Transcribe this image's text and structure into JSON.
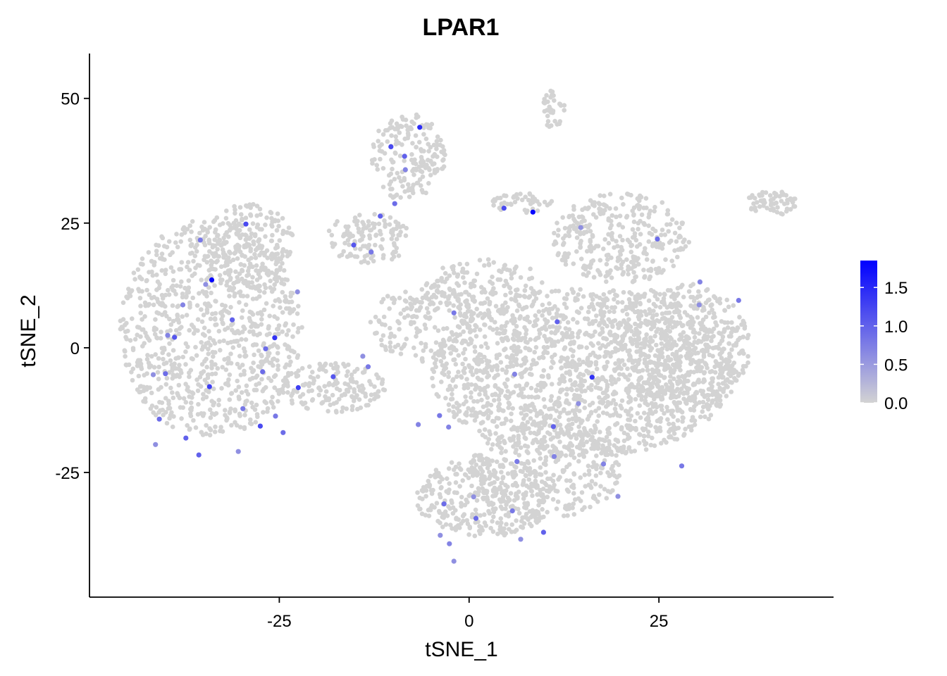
{
  "chart_data": {
    "type": "scatter",
    "title": "LPAR1",
    "xlabel": "tSNE_1",
    "ylabel": "tSNE_2",
    "xlim": [
      -50,
      48
    ],
    "ylim": [
      -50,
      59
    ],
    "x_ticks": [
      -25,
      0,
      25
    ],
    "y_ticks": [
      -25,
      0,
      25,
      50
    ],
    "x_tick_labels": [
      "-25",
      "0",
      "25"
    ],
    "y_tick_labels": [
      "-25",
      "0",
      "25",
      "50"
    ],
    "grid": false,
    "legend_placement": "right",
    "color_scale": {
      "low": "#d3d3d3",
      "high": "#0000ff",
      "min": 0,
      "max": 1.85,
      "breaks": [
        0.0,
        0.5,
        1.0,
        1.5
      ],
      "break_labels": [
        "0.0",
        "0.5",
        "1.0",
        "1.5"
      ]
    },
    "clusters": [
      {
        "cx": -34,
        "cy": 4,
        "rx": 12,
        "ry": 22,
        "n": 900
      },
      {
        "cx": -29,
        "cy": 20,
        "rx": 6,
        "ry": 9,
        "n": 200
      },
      {
        "cx": -18,
        "cy": -8,
        "rx": 7,
        "ry": 5,
        "n": 160
      },
      {
        "cx": -8,
        "cy": 38,
        "rx": 5,
        "ry": 9,
        "n": 180
      },
      {
        "cx": -13,
        "cy": 22,
        "rx": 6,
        "ry": 5,
        "n": 120
      },
      {
        "cx": -6,
        "cy": 5,
        "rx": 7,
        "ry": 8,
        "n": 170
      },
      {
        "cx": 11,
        "cy": 48,
        "rx": 1.6,
        "ry": 4,
        "n": 35
      },
      {
        "cx": 7,
        "cy": 29,
        "rx": 4,
        "ry": 2,
        "n": 45
      },
      {
        "cx": 40,
        "cy": 29,
        "rx": 3.5,
        "ry": 2.5,
        "n": 65
      },
      {
        "cx": 20,
        "cy": 22,
        "rx": 9,
        "ry": 9,
        "n": 320
      },
      {
        "cx": 2,
        "cy": 12,
        "rx": 8,
        "ry": 6,
        "n": 160
      },
      {
        "cx": 15,
        "cy": -5,
        "rx": 20,
        "ry": 17,
        "n": 1600
      },
      {
        "cx": 28,
        "cy": 0,
        "rx": 9,
        "ry": 13,
        "n": 450
      },
      {
        "cx": 2,
        "cy": -30,
        "rx": 9,
        "ry": 8,
        "n": 330
      },
      {
        "cx": 10,
        "cy": -25,
        "rx": 10,
        "ry": 10,
        "n": 320
      }
    ],
    "expressing_cells": [
      {
        "x": -33.9,
        "y": 13.6,
        "v": 1.85
      },
      {
        "x": 8.4,
        "y": 27.2,
        "v": 1.8
      },
      {
        "x": -6.5,
        "y": 44.2,
        "v": 1.45
      },
      {
        "x": -25.6,
        "y": 2.0,
        "v": 1.4
      },
      {
        "x": 16.2,
        "y": -5.9,
        "v": 1.4
      },
      {
        "x": -34.2,
        "y": -7.8,
        "v": 1.3
      },
      {
        "x": -29.4,
        "y": 24.8,
        "v": 1.2
      },
      {
        "x": -10.3,
        "y": 40.3,
        "v": 1.2
      },
      {
        "x": -22.5,
        "y": -8.0,
        "v": 1.3
      },
      {
        "x": -27.5,
        "y": -15.7,
        "v": 1.2
      },
      {
        "x": 4.6,
        "y": 28.0,
        "v": 1.2
      },
      {
        "x": -15.2,
        "y": 20.6,
        "v": 1.1
      },
      {
        "x": -11.7,
        "y": 26.4,
        "v": 1.0
      },
      {
        "x": -17.9,
        "y": -5.8,
        "v": 1.1
      },
      {
        "x": 11.6,
        "y": 5.2,
        "v": 1.0
      },
      {
        "x": -40.0,
        "y": -5.2,
        "v": 0.9
      },
      {
        "x": -37.3,
        "y": -18.1,
        "v": 1.0
      },
      {
        "x": -35.6,
        "y": -21.5,
        "v": 1.0
      },
      {
        "x": -26.8,
        "y": -0.2,
        "v": 0.9
      },
      {
        "x": -27.2,
        "y": -4.8,
        "v": 0.9
      },
      {
        "x": -40.8,
        "y": -14.3,
        "v": 0.9
      },
      {
        "x": -38.8,
        "y": 2.1,
        "v": 1.1
      },
      {
        "x": 9.8,
        "y": -37.0,
        "v": 1.0
      },
      {
        "x": 24.8,
        "y": 21.8,
        "v": 0.9
      },
      {
        "x": 11.1,
        "y": -15.8,
        "v": 1.0
      },
      {
        "x": -9.8,
        "y": 28.9,
        "v": 0.9
      },
      {
        "x": -2.0,
        "y": 7.0,
        "v": 0.8
      },
      {
        "x": -13.3,
        "y": -3.8,
        "v": 0.8
      },
      {
        "x": -8.5,
        "y": 38.4,
        "v": 1.0
      },
      {
        "x": -12.9,
        "y": 19.2,
        "v": 0.8
      },
      {
        "x": 6.3,
        "y": -22.8,
        "v": 0.8
      },
      {
        "x": -3.9,
        "y": -13.6,
        "v": 0.8
      },
      {
        "x": 0.9,
        "y": -34.2,
        "v": 0.9
      },
      {
        "x": -3.3,
        "y": -31.3,
        "v": 0.9
      },
      {
        "x": 28.0,
        "y": -23.7,
        "v": 0.8
      },
      {
        "x": 5.7,
        "y": -32.7,
        "v": 0.8
      },
      {
        "x": 11.2,
        "y": -21.8,
        "v": 0.7
      },
      {
        "x": -29.8,
        "y": -12.2,
        "v": 0.8
      },
      {
        "x": -35.4,
        "y": 21.6,
        "v": 0.8
      },
      {
        "x": 6.0,
        "y": -5.3,
        "v": 0.7
      },
      {
        "x": -2.7,
        "y": -15.9,
        "v": 0.7
      },
      {
        "x": -24.5,
        "y": -17.0,
        "v": 0.9
      },
      {
        "x": -2.6,
        "y": -39.3,
        "v": 0.7
      },
      {
        "x": -39.7,
        "y": 2.5,
        "v": 0.7
      },
      {
        "x": -31.2,
        "y": 5.6,
        "v": 1.0
      },
      {
        "x": 35.5,
        "y": 9.5,
        "v": 0.8
      },
      {
        "x": 30.4,
        "y": 13.2,
        "v": 0.7
      },
      {
        "x": -8.4,
        "y": 35.7,
        "v": 0.7
      },
      {
        "x": -2.0,
        "y": -42.8,
        "v": 0.6
      },
      {
        "x": -41.3,
        "y": -19.4,
        "v": 0.6
      },
      {
        "x": -25.5,
        "y": -13.7,
        "v": 0.8
      },
      {
        "x": -22.6,
        "y": 11.2,
        "v": 0.6
      },
      {
        "x": -14.0,
        "y": -1.7,
        "v": 0.6
      },
      {
        "x": -3.8,
        "y": -37.6,
        "v": 0.6
      },
      {
        "x": -6.7,
        "y": -15.4,
        "v": 0.7
      },
      {
        "x": -41.6,
        "y": -5.4,
        "v": 0.6
      },
      {
        "x": 6.8,
        "y": -38.4,
        "v": 0.6
      },
      {
        "x": 19.6,
        "y": -29.8,
        "v": 0.6
      },
      {
        "x": 17.7,
        "y": -23.3,
        "v": 0.7
      },
      {
        "x": 0.6,
        "y": -29.9,
        "v": 0.6
      },
      {
        "x": -34.7,
        "y": 12.7,
        "v": 0.6
      },
      {
        "x": -37.7,
        "y": 8.6,
        "v": 0.7
      },
      {
        "x": -30.4,
        "y": -20.8,
        "v": 0.6
      },
      {
        "x": 14.4,
        "y": -11.2,
        "v": 0.6
      },
      {
        "x": 14.7,
        "y": 24.1,
        "v": 0.6
      },
      {
        "x": 30.3,
        "y": 8.6,
        "v": 0.6
      }
    ]
  }
}
